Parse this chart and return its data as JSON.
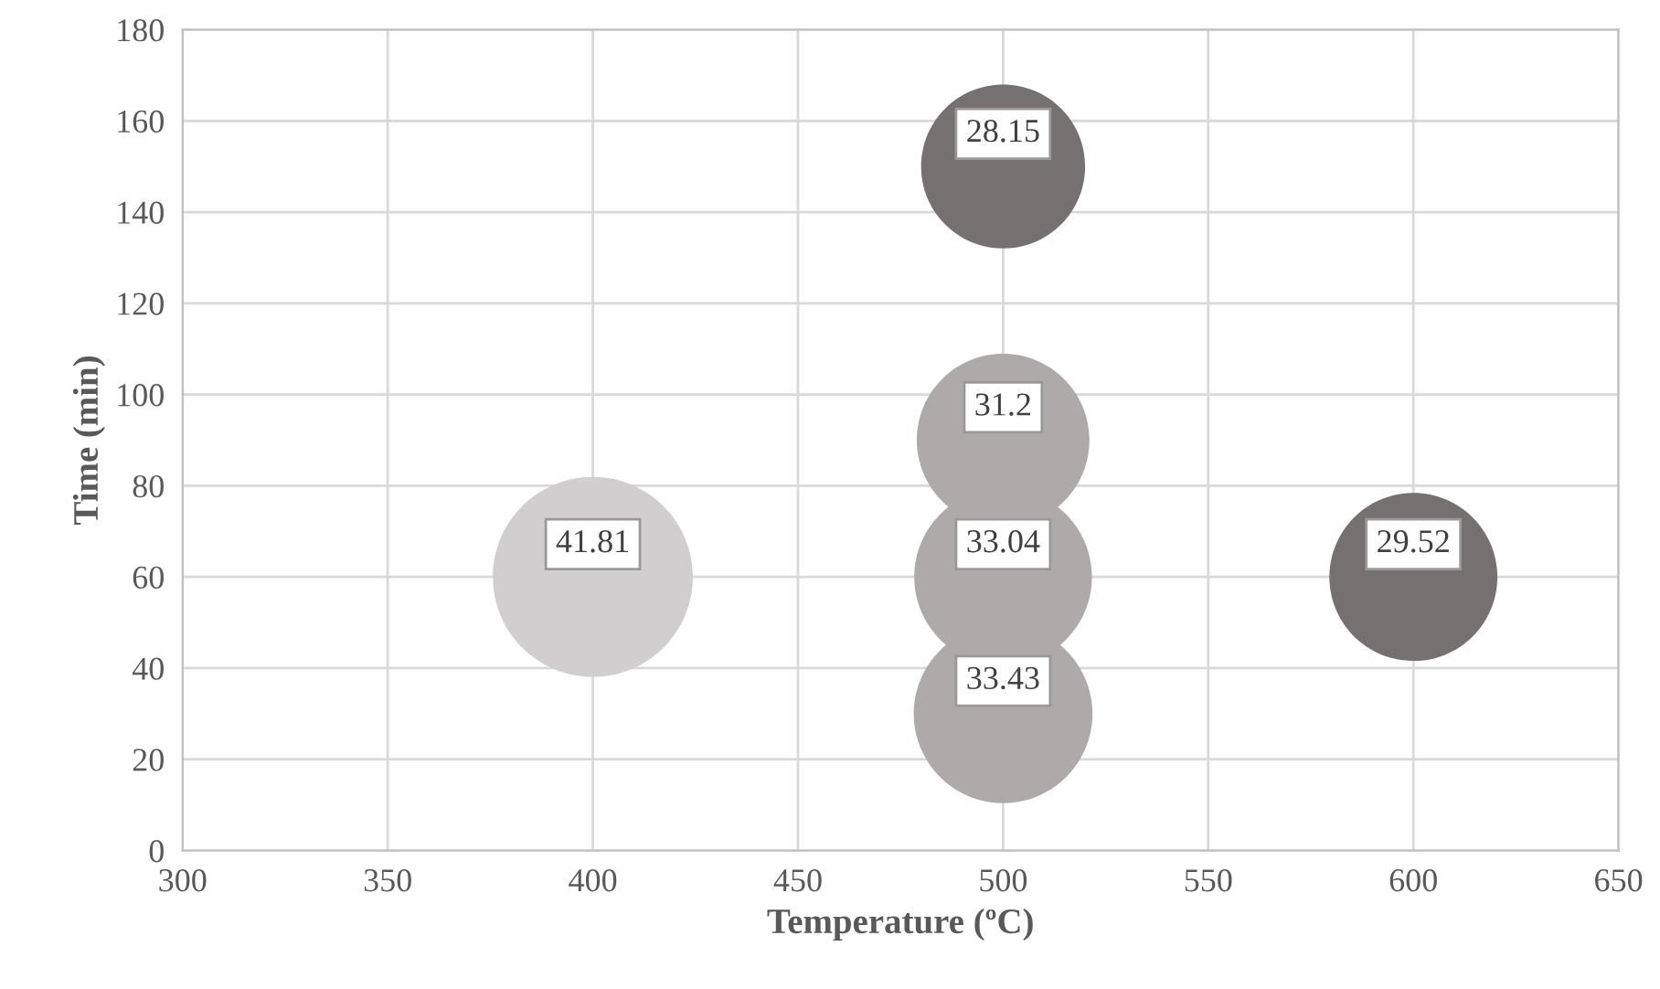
{
  "chart_data": {
    "type": "bubble",
    "xlabel": "Temperature (ºC)",
    "ylabel": "Time (min)",
    "x": [
      400,
      500,
      500,
      500,
      500,
      600
    ],
    "values": [
      60,
      30,
      60,
      90,
      150,
      60
    ],
    "sizes": [
      41.81,
      33.43,
      33.04,
      31.2,
      28.15,
      29.52
    ],
    "value_labels": [
      "41.81",
      "33.43",
      "33.04",
      "31.2",
      "28.15",
      "29.52"
    ],
    "colors": [
      "#d0cece",
      "#aeaaaa",
      "#aeaaaa",
      "#aeaaaa",
      "#767171",
      "#767171"
    ],
    "xlim": [
      300,
      650
    ],
    "xticks": [
      300,
      350,
      400,
      450,
      500,
      550,
      600,
      650
    ],
    "ylim": [
      0,
      180
    ],
    "yticks": [
      0,
      20,
      40,
      60,
      80,
      100,
      120,
      140,
      160,
      180
    ],
    "grid": true
  }
}
